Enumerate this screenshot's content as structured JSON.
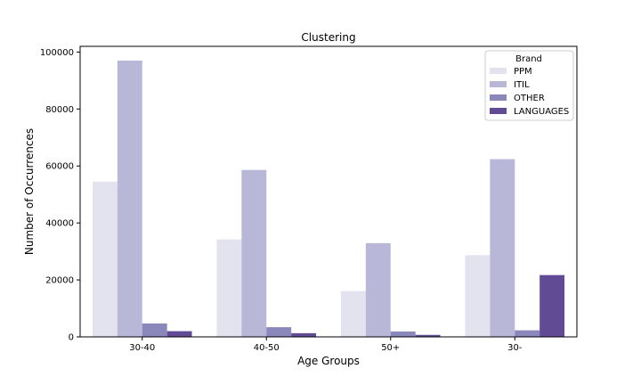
{
  "chart_data": {
    "type": "bar",
    "title": "Clustering",
    "xlabel": "Age Groups",
    "ylabel": "Number of Occurrences",
    "categories": [
      "30-40",
      "40-50",
      "50+",
      "30-"
    ],
    "ylim": [
      0,
      102000
    ],
    "yticks": [
      0,
      20000,
      40000,
      60000,
      80000,
      100000
    ],
    "legend": {
      "title": "Brand",
      "placement": "top-right"
    },
    "series": [
      {
        "name": "PPM",
        "color": "#e3e2ef",
        "values": [
          54500,
          34200,
          16100,
          28700
        ]
      },
      {
        "name": "ITIL",
        "color": "#b8b7d8",
        "values": [
          97000,
          58600,
          32900,
          62400
        ]
      },
      {
        "name": "OTHER",
        "color": "#8a87bb",
        "values": [
          4700,
          3400,
          1900,
          2300
        ]
      },
      {
        "name": "LANGUAGES",
        "color": "#624b95",
        "values": [
          2000,
          1300,
          700,
          21700
        ]
      }
    ]
  }
}
